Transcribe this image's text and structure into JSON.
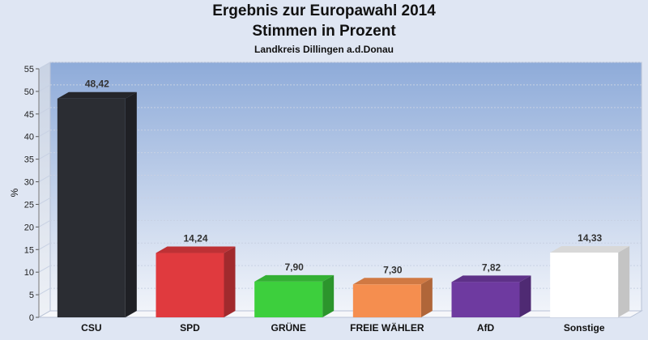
{
  "chart_data": {
    "type": "bar",
    "title": "Ergebnis zur Europawahl 2014",
    "subtitle": "Stimmen in Prozent",
    "caption": "Landkreis Dillingen a.d.Donau",
    "ylabel": "%",
    "ylim": [
      0,
      55
    ],
    "yticks": [
      0,
      5,
      10,
      15,
      20,
      25,
      30,
      35,
      40,
      45,
      50,
      55
    ],
    "categories": [
      "CSU",
      "SPD",
      "GRÜNE",
      "FREIE WÄHLER",
      "AfD",
      "Sonstige"
    ],
    "values": [
      48.42,
      14.24,
      7.9,
      7.3,
      7.82,
      14.33
    ],
    "value_labels": [
      "48,42",
      "14,24",
      "7,90",
      "7,30",
      "7,82",
      "14,33"
    ],
    "colors": [
      "#2b2d33",
      "#e03a3e",
      "#3dcf3d",
      "#f58e4f",
      "#6e3aa0",
      "#ffffff"
    ],
    "grid": true,
    "legend": "none"
  }
}
